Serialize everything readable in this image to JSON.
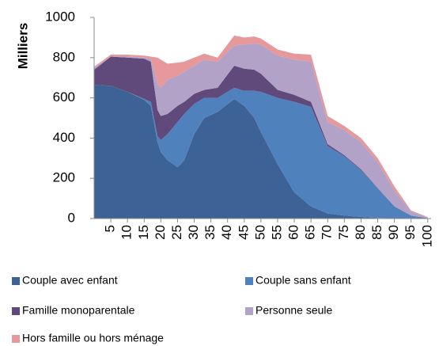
{
  "chart_data": {
    "type": "stacked_area",
    "y_label": "Milliers",
    "x": [
      0,
      5,
      10,
      15,
      17,
      19,
      20,
      22,
      25,
      27,
      30,
      33,
      37,
      42,
      45,
      48,
      50,
      55,
      60,
      65,
      70,
      75,
      80,
      85,
      90,
      95,
      100
    ],
    "series": [
      {
        "name": "Couple avec enfant",
        "color": "#3d6296",
        "values": [
          665,
          660,
          630,
          590,
          560,
          380,
          330,
          290,
          255,
          290,
          420,
          500,
          530,
          595,
          560,
          500,
          430,
          270,
          130,
          60,
          25,
          15,
          8,
          3,
          1,
          0,
          0
        ]
      },
      {
        "name": "Couple sans enfant",
        "color": "#4f81bd",
        "values": [
          0,
          0,
          0,
          5,
          20,
          30,
          60,
          130,
          225,
          230,
          150,
          100,
          70,
          55,
          75,
          135,
          200,
          330,
          450,
          495,
          335,
          295,
          232,
          147,
          59,
          15,
          2
        ]
      },
      {
        "name": "Famille monoparentale",
        "color": "#604a7b",
        "values": [
          75,
          145,
          170,
          200,
          200,
          130,
          120,
          100,
          80,
          60,
          50,
          40,
          50,
          110,
          110,
          105,
          90,
          40,
          35,
          25,
          10,
          5,
          5,
          2,
          1,
          0,
          0
        ]
      },
      {
        "name": "Personne seule",
        "color": "#b3a2c7",
        "values": [
          10,
          0,
          5,
          5,
          15,
          130,
          140,
          170,
          150,
          150,
          140,
          150,
          130,
          100,
          120,
          130,
          145,
          170,
          175,
          200,
          110,
          125,
          135,
          128,
          79,
          20,
          3
        ]
      },
      {
        "name": "Hors famille ou hors ménage",
        "color": "#e6989a",
        "values": [
          5,
          10,
          10,
          10,
          10,
          130,
          140,
          80,
          65,
          50,
          40,
          30,
          20,
          50,
          35,
          35,
          30,
          30,
          30,
          35,
          30,
          20,
          20,
          20,
          20,
          5,
          3
        ]
      }
    ],
    "xlim": [
      0,
      101
    ],
    "xticks": [
      5,
      10,
      15,
      20,
      25,
      30,
      35,
      40,
      45,
      50,
      55,
      60,
      65,
      70,
      75,
      80,
      85,
      90,
      95,
      100
    ],
    "ylim": [
      0,
      1000
    ],
    "yticks": [
      0,
      200,
      400,
      600,
      800,
      1000
    ],
    "grid": false
  }
}
